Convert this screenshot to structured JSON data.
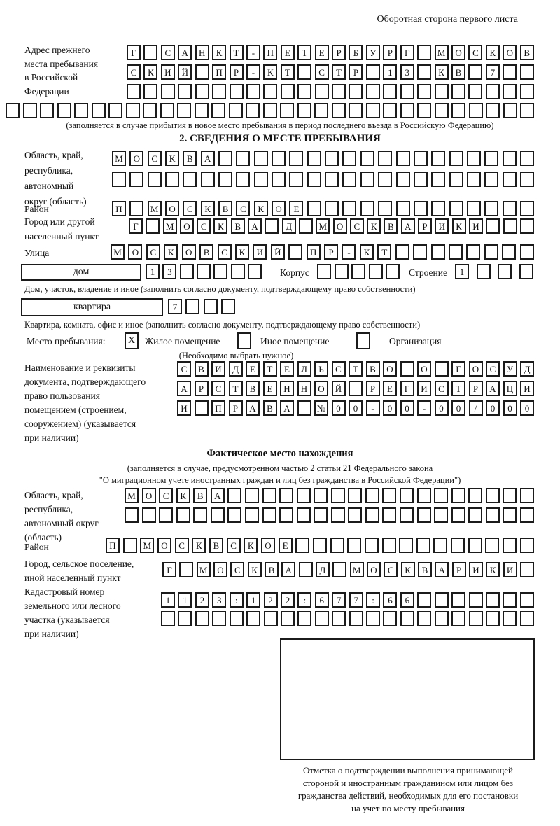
{
  "page": {
    "header_note": "Оборотная сторона первого листа"
  },
  "prev_address": {
    "label": "Адрес прежнего\nместа пребывания\nв Российской\nФедерации",
    "caption": "(заполняется в случае прибытия в новое место пребывания в период последнего въезда в Российскую Федерацию)"
  },
  "section2": {
    "title": "2. СВЕДЕНИЯ О МЕСТЕ ПРЕБЫВАНИЯ",
    "region_label": "Область, край,\nреспублика,\nавтономный\nокруг (область)",
    "district_label": "Район",
    "city_label": "Город или другой\nнаселенный пункт",
    "street_label": "Улица",
    "house_label": "дом",
    "korpus_label": "Корпус",
    "stroenie_label": "Строение",
    "house_caption": "Дом, участок, владение и иное (заполнить согласно документу, подтверждающему право собственности)",
    "flat_label": "квартира",
    "flat_caption": "Квартира, комната, офис и иное (заполнить согласно документу, подтверждающему право собственности)",
    "occupancy": {
      "label": "Место пребывания:",
      "options": [
        {
          "mark": "X",
          "label": "Жилое помещение"
        },
        {
          "mark": "",
          "label": "Иное помещение"
        },
        {
          "mark": "",
          "label": "Организация"
        }
      ],
      "hint": "(Необходимо выбрать нужное)"
    },
    "document_label": "Наименование и реквизиты\nдокумента, подтверждающего\nправо пользования\nпомещением (строением,\nсооружением) (указывается\nпри наличии)"
  },
  "actual_location": {
    "title": "Фактическое место нахождения",
    "caption1": "(заполняется в случае, предусмотренном частью 2 статьи 21 Федерального закона",
    "caption2": "\"О миграционном учете иностранных граждан и лиц без гражданства в Российской Федерации\")",
    "region_label": "Область, край,\nреспублика,\nавтономный округ\n(область)",
    "district_label": "Район",
    "city_label": "Город, сельское поселение,\nиной населенный пункт",
    "cadastre_label": "Кадастровый номер\nземельного или лесного\nучастка (указывается\nпри наличии)",
    "stamp_note": "Отметка о подтверждении выполнения принимающей\nстороной и иностранным гражданином или лицом без\nгражданства действий, необходимых для его постановки\nна учет по месту пребывания"
  },
  "grids": {
    "prev_r1": {
      "count": 24,
      "text": "Г САНКТ-ПЕТЕРБУРГ МОСКОВ"
    },
    "prev_r2": {
      "count": 24,
      "text": "СКИЙ ПР-КТ СТР 13 КВ 7"
    },
    "prev_r3": {
      "count": 24,
      "text": ""
    },
    "prev_r4": {
      "count": 31,
      "text": ""
    },
    "region1_r1": {
      "count": 24,
      "text": "МОСКВА"
    },
    "region1_r2": {
      "count": 24,
      "text": ""
    },
    "district1": {
      "count": 24,
      "text": "П МОСКВСКОЕ"
    },
    "city1": {
      "count": 24,
      "text": "Г МОСКВА Д МОСКВАРИКИ"
    },
    "street1": {
      "count": 24,
      "text": "МОСКОВСКИЙ ПР-КТ"
    },
    "house": {
      "count": 7,
      "text": "13"
    },
    "korpus": {
      "count": 5,
      "text": ""
    },
    "stroenie": {
      "count": 4,
      "text": "1"
    },
    "flat": {
      "count": 4,
      "text": "7"
    },
    "doc_r1": {
      "count": 21,
      "text": "СВИДЕТЕЛЬСТВО О ГОСУД"
    },
    "doc_r2": {
      "count": 21,
      "text": "АРСТВЕННОЙ РЕГИСТРАЦИ"
    },
    "doc_r3": {
      "count": 21,
      "text": "И ПРАВА №00-00-00/000"
    },
    "region2_r1": {
      "count": 24,
      "text": "МОСКВА"
    },
    "region2_r2": {
      "count": 24,
      "text": ""
    },
    "district2": {
      "count": 25,
      "text": "П МОСКВСКОЕ"
    },
    "city2": {
      "count": 22,
      "text": "Г МОСКВА Д МОСКВАРИКИ"
    },
    "cad_r1": {
      "count": 22,
      "text": "1123:122:677:66"
    },
    "cad_r2": {
      "count": 22,
      "text": ""
    }
  }
}
